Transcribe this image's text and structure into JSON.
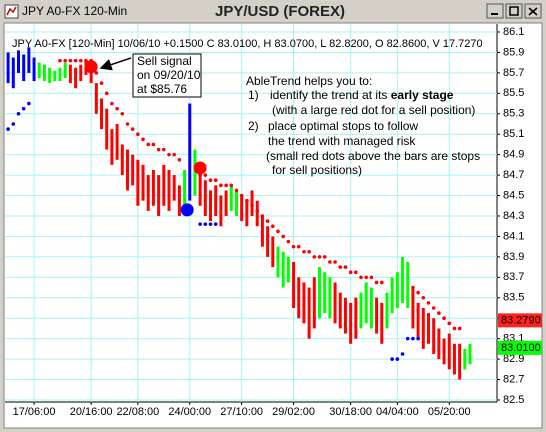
{
  "window": {
    "title": "JPY A0-FX 120-Min"
  },
  "chart_data": {
    "type": "rangebar",
    "title": "JPY/USD (FOREX)",
    "header": "JPY  A0-FX [120-Min] 10/06/10 +0.1500 C 83.0100, H 83.0700, L 82.8200, O 82.8600, V 17.7270",
    "x": [
      0,
      1,
      2,
      3,
      4,
      5,
      6,
      7,
      8,
      9,
      10,
      11,
      12,
      13,
      14,
      15,
      16,
      17,
      18,
      19,
      20,
      21,
      22,
      23,
      24,
      25,
      26,
      27,
      28,
      29,
      30,
      31,
      32,
      33,
      34,
      35,
      36,
      37,
      38,
      39,
      40,
      41,
      42,
      43,
      44,
      45,
      46,
      47,
      48,
      49,
      50,
      51,
      52,
      53,
      54,
      55,
      56,
      57,
      58,
      59,
      60,
      61,
      62,
      63,
      64,
      65,
      66,
      67,
      68,
      69,
      70,
      71,
      72,
      73,
      74,
      75,
      76,
      77,
      78,
      79,
      80,
      81,
      82,
      83,
      84,
      85,
      86,
      87,
      88,
      89
    ],
    "high": [
      85.9,
      85.85,
      85.92,
      85.88,
      85.95,
      85.85,
      85.8,
      85.78,
      85.75,
      85.72,
      85.75,
      85.8,
      85.78,
      85.75,
      85.78,
      85.82,
      85.8,
      85.6,
      85.45,
      85.35,
      85.15,
      85.2,
      85.0,
      84.95,
      84.9,
      84.85,
      84.8,
      84.7,
      84.75,
      84.7,
      84.8,
      84.75,
      84.7,
      84.6,
      84.75,
      85.4,
      84.95,
      84.8,
      84.65,
      84.55,
      84.6,
      84.5,
      84.55,
      84.6,
      84.55,
      84.5,
      84.45,
      84.55,
      84.45,
      84.3,
      84.2,
      84.1,
      84.0,
      83.95,
      83.9,
      83.85,
      83.7,
      83.65,
      83.6,
      83.7,
      83.8,
      83.75,
      83.7,
      83.65,
      83.55,
      83.5,
      83.45,
      83.5,
      83.55,
      83.65,
      83.6,
      83.5,
      83.45,
      83.55,
      83.7,
      83.75,
      83.9,
      83.85,
      83.6,
      83.45,
      83.4,
      83.35,
      83.3,
      83.2,
      83.1,
      83.15,
      83.05,
      83.05,
      83.0,
      83.05
    ],
    "low": [
      85.6,
      85.55,
      85.7,
      85.62,
      85.7,
      85.62,
      85.65,
      85.62,
      85.6,
      85.62,
      85.62,
      85.65,
      85.6,
      85.55,
      85.62,
      85.68,
      85.6,
      85.3,
      85.15,
      84.95,
      84.8,
      84.85,
      84.7,
      84.55,
      84.6,
      84.4,
      84.45,
      84.35,
      84.4,
      84.3,
      84.4,
      84.35,
      84.45,
      84.3,
      84.4,
      84.45,
      84.5,
      84.4,
      84.3,
      84.25,
      84.3,
      84.2,
      84.3,
      84.35,
      84.3,
      84.25,
      84.2,
      84.3,
      84.2,
      84.0,
      83.9,
      83.8,
      83.7,
      83.6,
      83.65,
      83.4,
      83.3,
      83.25,
      83.1,
      83.2,
      83.3,
      83.35,
      83.3,
      83.25,
      83.2,
      83.15,
      83.05,
      83.1,
      83.2,
      83.25,
      83.2,
      83.15,
      83.05,
      83.2,
      83.35,
      83.4,
      83.45,
      83.4,
      83.2,
      83.1,
      83.0,
      83.05,
      82.95,
      82.9,
      82.85,
      82.8,
      82.75,
      82.7,
      82.8,
      82.85
    ],
    "colors": [
      "#0000ff",
      "#0000ff",
      "#0000ff",
      "#0000ff",
      "#0000ff",
      "#0000ff",
      "#00ff00",
      "#00ff00",
      "#00ff00",
      "#00ff00",
      "#00ff00",
      "#00ff00",
      "#ff0000",
      "#ff0000",
      "#ff0000",
      "#ff0000",
      "#ff0000",
      "#ff0000",
      "#ff0000",
      "#ff0000",
      "#ff0000",
      "#ff0000",
      "#ff0000",
      "#ff0000",
      "#ff0000",
      "#ff0000",
      "#ff0000",
      "#ff0000",
      "#ff0000",
      "#ff0000",
      "#ff0000",
      "#ff0000",
      "#ff0000",
      "#ff0000",
      "#00ff00",
      "#0000ff",
      "#00ff00",
      "#ff0000",
      "#ff0000",
      "#ff0000",
      "#ff0000",
      "#ff0000",
      "#ff0000",
      "#00ff00",
      "#00ff00",
      "#ff0000",
      "#ff0000",
      "#ff0000",
      "#ff0000",
      "#ff0000",
      "#ff0000",
      "#ff0000",
      "#00ff00",
      "#00ff00",
      "#00ff00",
      "#ff0000",
      "#ff0000",
      "#ff0000",
      "#ff0000",
      "#ff0000",
      "#00ff00",
      "#00ff00",
      "#00ff00",
      "#ff0000",
      "#ff0000",
      "#ff0000",
      "#ff0000",
      "#ff0000",
      "#00ff00",
      "#00ff00",
      "#00ff00",
      "#ff0000",
      "#ff0000",
      "#00ff00",
      "#00ff00",
      "#00ff00",
      "#00ff00",
      "#00ff00",
      "#ff0000",
      "#ff0000",
      "#ff0000",
      "#ff0000",
      "#ff0000",
      "#ff0000",
      "#ff0000",
      "#ff0000",
      "#ff0000",
      "#ff0000",
      "#00ff00",
      "#00ff00"
    ],
    "sell_stops": {
      "color": "#ff0000",
      "values": [
        null,
        null,
        null,
        null,
        null,
        null,
        null,
        null,
        null,
        null,
        85.82,
        85.82,
        85.82,
        85.82,
        85.82,
        85.82,
        85.82,
        85.7,
        85.6,
        85.5,
        85.4,
        85.35,
        85.3,
        85.2,
        85.15,
        85.1,
        85.05,
        85.0,
        85.0,
        84.95,
        84.95,
        84.9,
        84.9,
        84.85,
        null,
        null,
        null,
        84.7,
        84.7,
        84.65,
        84.65,
        84.6,
        84.6,
        84.6,
        84.55,
        84.5,
        84.45,
        84.4,
        84.35,
        84.3,
        84.25,
        84.2,
        84.15,
        84.1,
        84.05,
        84.0,
        84.0,
        83.95,
        83.95,
        83.9,
        83.9,
        83.9,
        83.85,
        83.85,
        83.8,
        83.8,
        83.75,
        83.75,
        83.7,
        83.7,
        83.7,
        83.65,
        83.65,
        null,
        null,
        null,
        null,
        null,
        83.6,
        83.55,
        83.5,
        83.45,
        83.4,
        83.35,
        83.3,
        83.25,
        83.2,
        83.2,
        null,
        null
      ]
    },
    "buy_stops": {
      "color": "#0000ff",
      "values": [
        85.15,
        85.2,
        85.3,
        85.35,
        85.4,
        null,
        null,
        null,
        null,
        null,
        null,
        null,
        null,
        null,
        null,
        null,
        null,
        null,
        null,
        null,
        null,
        null,
        null,
        null,
        null,
        null,
        null,
        null,
        null,
        null,
        null,
        null,
        null,
        null,
        null,
        null,
        null,
        84.22,
        84.22,
        84.22,
        84.22,
        null,
        null,
        null,
        null,
        null,
        null,
        null,
        null,
        null,
        null,
        null,
        null,
        null,
        null,
        null,
        null,
        null,
        null,
        null,
        null,
        null,
        null,
        null,
        null,
        null,
        null,
        null,
        null,
        null,
        null,
        null,
        null,
        null,
        82.9,
        82.9,
        82.95,
        83.1,
        83.1,
        83.1,
        null,
        null,
        null,
        null,
        null,
        null,
        null,
        null,
        null,
        null
      ]
    },
    "signals": [
      {
        "x": 16,
        "value": 85.76,
        "color": "#ff0000"
      },
      {
        "x": 37,
        "value": 84.77,
        "color": "#ff0000"
      },
      {
        "x": 34.5,
        "value": 84.36,
        "color": "#0000ff"
      }
    ],
    "price_labels": [
      {
        "value": 83.279,
        "label": "83.2790",
        "color": "#ff2020"
      },
      {
        "value": 83.01,
        "label": "83.0100",
        "color": "#00ff00"
      }
    ],
    "xlim": [
      -0.6,
      94.2
    ],
    "ylim": [
      82.5,
      86.1
    ],
    "xticks": [
      {
        "value": 5,
        "label": "17/06:00"
      },
      {
        "value": 16,
        "label": "20/16:00"
      },
      {
        "value": 25,
        "label": "22/08:00"
      },
      {
        "value": 35,
        "label": "24/00:00"
      },
      {
        "value": 45,
        "label": "27/10:00"
      },
      {
        "value": 55,
        "label": "29/02:00"
      },
      {
        "value": 66,
        "label": "30/18:00"
      },
      {
        "value": 75,
        "label": "04/04:00"
      },
      {
        "value": 85,
        "label": "05/20:00"
      }
    ],
    "yticks": [
      82.5,
      82.7,
      82.9,
      83.1,
      83.3,
      83.5,
      83.7,
      83.9,
      84.1,
      84.3,
      84.5,
      84.7,
      84.9,
      85.1,
      85.3,
      85.5,
      85.7,
      85.9,
      86.1
    ],
    "grid": true,
    "grid_color": "#a8f4f4",
    "sell_note": [
      "Sell signal",
      "on 09/20/10",
      "at $85.76"
    ],
    "info": {
      "heading": "AbleTrend helps you to:",
      "item1_num": "1)",
      "item1": "identify the trend at its ",
      "item1_bold": "early stage",
      "item1_sub": "(with a large red dot for a sell position)",
      "item2_num": "2)",
      "item2": "place optimal stops to follow",
      "item2_sub1": "the trend with managed risk",
      "item2_sub2": "(small red dots above the bars are stops",
      "item2_sub3": "for sell positions)"
    }
  }
}
